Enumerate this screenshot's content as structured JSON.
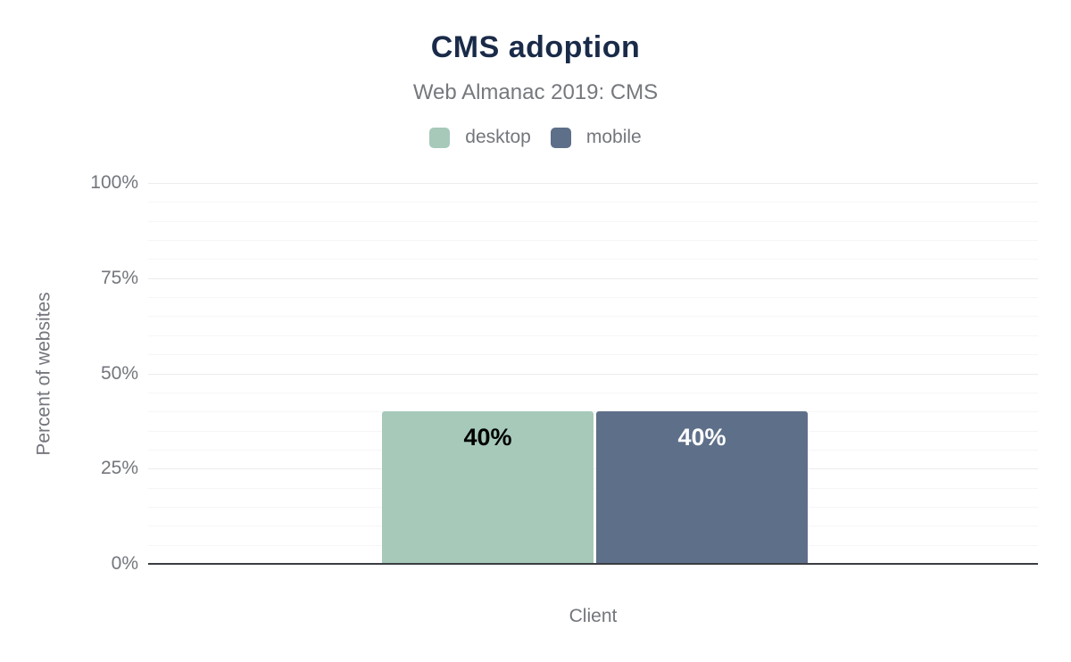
{
  "chart_data": {
    "type": "bar",
    "title": "CMS adoption",
    "subtitle": "Web Almanac 2019: CMS",
    "xlabel": "Client",
    "ylabel": "Percent of websites",
    "ylim": [
      0,
      100
    ],
    "yticks": [
      0,
      25,
      50,
      75,
      100
    ],
    "ytick_suffix": "%",
    "minor_gridline_step": 5,
    "grid": true,
    "legend_position": "top",
    "categories": [
      "desktop",
      "mobile"
    ],
    "series": [
      {
        "name": "desktop",
        "value": 40,
        "label": "40%",
        "color": "#a6c9ba",
        "label_color": "#000000"
      },
      {
        "name": "mobile",
        "value": 40,
        "label": "40%",
        "color": "#5e6f89",
        "label_color": "#ffffff"
      }
    ]
  },
  "colors": {
    "bg": "#ffffff",
    "title": "#1a2b49",
    "subtitle": "#75787d",
    "axistext": "#73767c",
    "axisline": "#3a3d42",
    "gridmajor": "#ececee",
    "gridminor": "#f6f6f8"
  }
}
